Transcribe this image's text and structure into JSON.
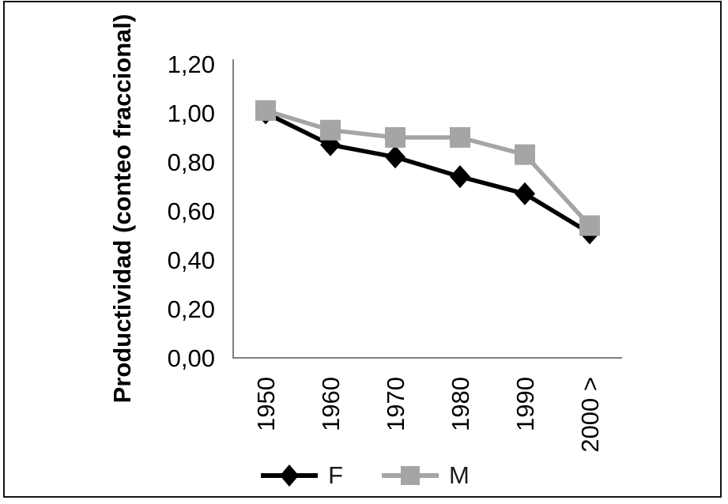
{
  "chart_data": {
    "type": "line",
    "title": "",
    "ylabel": "Productividad (conteo fraccional)",
    "xlabel": "",
    "categories": [
      "1950",
      "1960",
      "1970",
      "1980",
      "1990",
      "2000 >"
    ],
    "series": [
      {
        "name": "F",
        "marker": "diamond",
        "color": "#000000",
        "values": [
          1.0,
          0.87,
          0.82,
          0.74,
          0.67,
          0.51
        ]
      },
      {
        "name": "M",
        "marker": "square",
        "color": "#a5a5a5",
        "values": [
          1.01,
          0.93,
          0.9,
          0.9,
          0.83,
          0.54
        ]
      }
    ],
    "ylim": [
      0,
      1.2
    ],
    "ytick_values": [
      0,
      0.2,
      0.4,
      0.6,
      0.8,
      1.0,
      1.2
    ],
    "ytick_labels": [
      "0,00",
      "0,20",
      "0,40",
      "0,60",
      "0,80",
      "1,00",
      "1,20"
    ],
    "decimal_separator": ",",
    "grid": false,
    "legend_position": "bottom",
    "axis_color": "#808080"
  }
}
